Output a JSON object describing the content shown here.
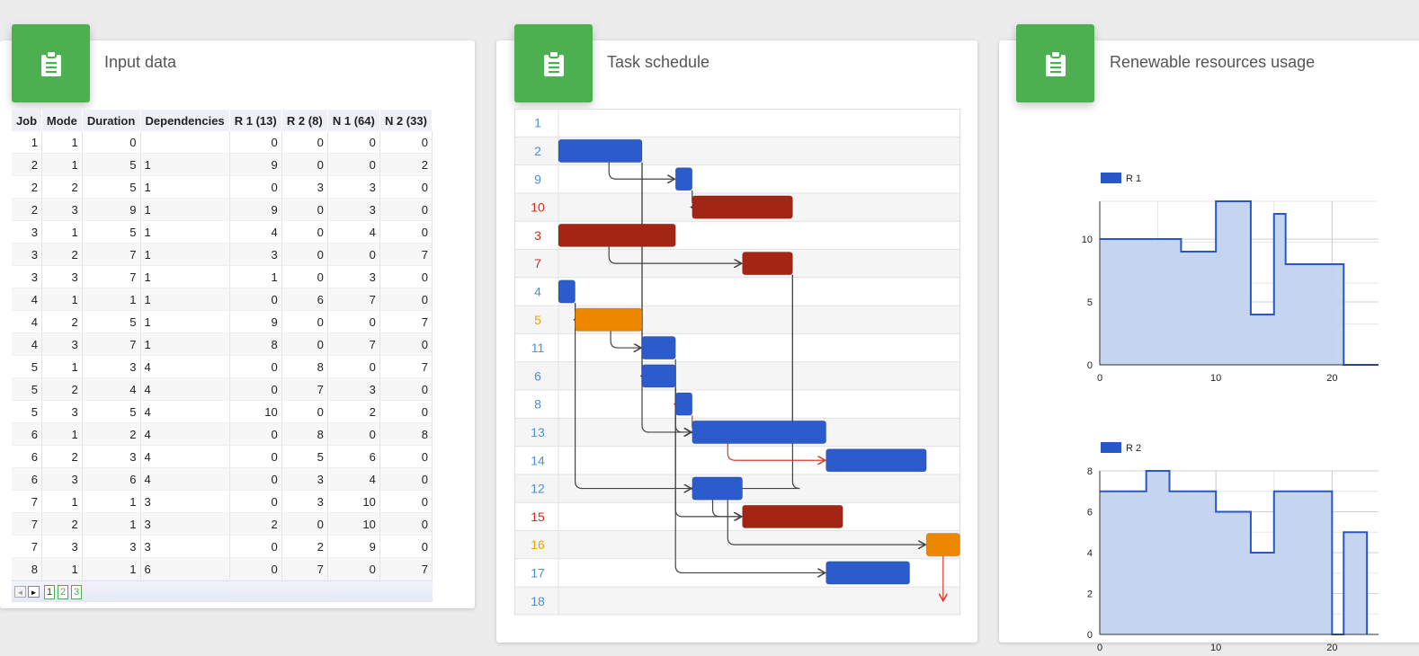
{
  "cards": {
    "input": {
      "title": "Input data",
      "icon": "clipboard-icon"
    },
    "schedule": {
      "title": "Task schedule",
      "icon": "clipboard-icon"
    },
    "resources": {
      "title": "Renewable resources usage",
      "icon": "clipboard-icon"
    }
  },
  "colors": {
    "accent": "#4caf50",
    "blue": "#2c5ccc",
    "red": "#a32614",
    "orange": "#ee8700",
    "label_blue": "#4a8fd8",
    "label_red": "#d02a1a",
    "label_orange": "#f0a000",
    "area_fill": "#c2d2ee",
    "area_line": "#2857c8"
  },
  "table": {
    "headers": [
      "Job",
      "Mode",
      "Duration",
      "Dependencies",
      "R 1 (13)",
      "R 2 (8)",
      "N 1 (64)",
      "N 2 (33)"
    ],
    "rows": [
      [
        "1",
        "1",
        "0",
        "",
        "0",
        "0",
        "0",
        "0"
      ],
      [
        "2",
        "1",
        "5",
        "1",
        "9",
        "0",
        "0",
        "2"
      ],
      [
        "2",
        "2",
        "5",
        "1",
        "0",
        "3",
        "3",
        "0"
      ],
      [
        "2",
        "3",
        "9",
        "1",
        "9",
        "0",
        "3",
        "0"
      ],
      [
        "3",
        "1",
        "5",
        "1",
        "4",
        "0",
        "4",
        "0"
      ],
      [
        "3",
        "2",
        "7",
        "1",
        "3",
        "0",
        "0",
        "7"
      ],
      [
        "3",
        "3",
        "7",
        "1",
        "1",
        "0",
        "3",
        "0"
      ],
      [
        "4",
        "1",
        "1",
        "1",
        "0",
        "6",
        "7",
        "0"
      ],
      [
        "4",
        "2",
        "5",
        "1",
        "9",
        "0",
        "0",
        "7"
      ],
      [
        "4",
        "3",
        "7",
        "1",
        "8",
        "0",
        "7",
        "0"
      ],
      [
        "5",
        "1",
        "3",
        "4",
        "0",
        "8",
        "0",
        "7"
      ],
      [
        "5",
        "2",
        "4",
        "4",
        "0",
        "7",
        "3",
        "0"
      ],
      [
        "5",
        "3",
        "5",
        "4",
        "10",
        "0",
        "2",
        "0"
      ],
      [
        "6",
        "1",
        "2",
        "4",
        "0",
        "8",
        "0",
        "8"
      ],
      [
        "6",
        "2",
        "3",
        "4",
        "0",
        "5",
        "6",
        "0"
      ],
      [
        "6",
        "3",
        "6",
        "4",
        "0",
        "3",
        "4",
        "0"
      ],
      [
        "7",
        "1",
        "1",
        "3",
        "0",
        "3",
        "10",
        "0"
      ],
      [
        "7",
        "2",
        "1",
        "3",
        "2",
        "0",
        "10",
        "0"
      ],
      [
        "7",
        "3",
        "3",
        "3",
        "0",
        "2",
        "9",
        "0"
      ],
      [
        "8",
        "1",
        "1",
        "6",
        "0",
        "7",
        "0",
        "7"
      ]
    ],
    "pager": {
      "prev": "◄",
      "next": "►",
      "pages": [
        "1",
        "2",
        "3"
      ],
      "current": "1"
    }
  },
  "gantt": {
    "rows": [
      {
        "label": "1",
        "color": "blue"
      },
      {
        "label": "2",
        "color": "blue"
      },
      {
        "label": "9",
        "color": "blue"
      },
      {
        "label": "10",
        "color": "red"
      },
      {
        "label": "3",
        "color": "red"
      },
      {
        "label": "7",
        "color": "red"
      },
      {
        "label": "4",
        "color": "blue"
      },
      {
        "label": "5",
        "color": "orange"
      },
      {
        "label": "11",
        "color": "blue"
      },
      {
        "label": "6",
        "color": "blue"
      },
      {
        "label": "8",
        "color": "blue"
      },
      {
        "label": "13",
        "color": "blue"
      },
      {
        "label": "14",
        "color": "blue"
      },
      {
        "label": "12",
        "color": "blue"
      },
      {
        "label": "15",
        "color": "red"
      },
      {
        "label": "16",
        "color": "orange"
      },
      {
        "label": "17",
        "color": "blue"
      },
      {
        "label": "18",
        "color": "blue"
      }
    ],
    "tasks": [
      {
        "row": 1,
        "start": 0,
        "duration": 5
      },
      {
        "row": 2,
        "start": 7,
        "duration": 1
      },
      {
        "row": 3,
        "start": 8,
        "duration": 6
      },
      {
        "row": 4,
        "start": 0,
        "duration": 7
      },
      {
        "row": 5,
        "start": 11,
        "duration": 3
      },
      {
        "row": 6,
        "start": 0,
        "duration": 1
      },
      {
        "row": 7,
        "start": 1,
        "duration": 4
      },
      {
        "row": 8,
        "start": 5,
        "duration": 2
      },
      {
        "row": 9,
        "start": 5,
        "duration": 2
      },
      {
        "row": 10,
        "start": 7,
        "duration": 1
      },
      {
        "row": 11,
        "start": 8,
        "duration": 8
      },
      {
        "row": 12,
        "start": 16,
        "duration": 6
      },
      {
        "row": 13,
        "start": 8,
        "duration": 3
      },
      {
        "row": 14,
        "start": 11,
        "duration": 6
      },
      {
        "row": 15,
        "start": 22,
        "duration": 2
      },
      {
        "row": 16,
        "start": 16,
        "duration": 5
      }
    ]
  },
  "chart_data": [
    {
      "type": "area",
      "legend": "R 1",
      "legend_position": "top-left",
      "x": [
        0,
        7,
        7,
        10,
        10,
        13,
        13,
        15,
        15,
        16,
        16,
        21,
        21,
        24
      ],
      "y": [
        10,
        10,
        9,
        9,
        13,
        13,
        4,
        4,
        12,
        12,
        8,
        8,
        0,
        0
      ],
      "xticks": [
        "0",
        "10",
        "20"
      ],
      "yticks": [
        "0",
        "5",
        "10"
      ],
      "xlim": [
        0,
        24
      ],
      "ylim": [
        0,
        13
      ],
      "grid": true
    },
    {
      "type": "area",
      "legend": "R 2",
      "legend_position": "top-left",
      "x": [
        0,
        4,
        4,
        6,
        6,
        10,
        10,
        13,
        13,
        15,
        15,
        20,
        20,
        21,
        21,
        23,
        23
      ],
      "y": [
        7,
        7,
        8,
        8,
        7,
        7,
        6,
        6,
        4,
        4,
        7,
        7,
        0,
        0,
        5,
        5,
        0
      ],
      "xticks": [
        "0",
        "10",
        "20"
      ],
      "yticks": [
        "0",
        "2",
        "4",
        "6",
        "8"
      ],
      "xlim": [
        0,
        24
      ],
      "ylim": [
        0,
        8
      ],
      "grid": true
    }
  ]
}
